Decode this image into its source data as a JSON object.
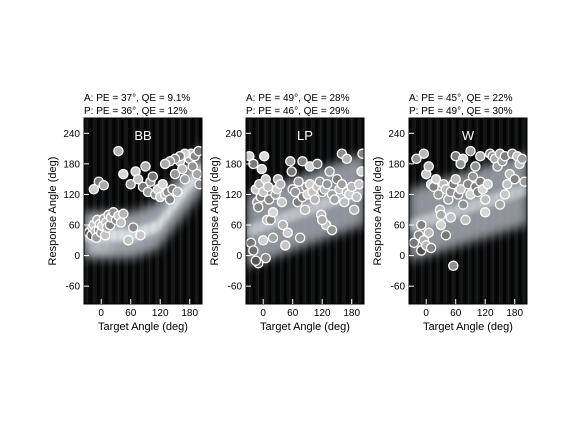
{
  "chart_data": [
    {
      "type": "scatter",
      "title": "BB",
      "stats": [
        "A: PE = 37°, QE = 9.1%",
        "P: PE = 36°, QE = 12%"
      ],
      "xlabel": "Target Angle (deg)",
      "ylabel": "Response Angle (deg)",
      "xlim": [
        -35,
        205
      ],
      "ylim": [
        -95,
        270
      ],
      "xticks": [
        0,
        60,
        120,
        180
      ],
      "yticks": [
        -60,
        0,
        60,
        120,
        180,
        240
      ],
      "xtick_labels": [
        "0",
        "60",
        "120",
        "180"
      ],
      "ytick_labels": [
        "-60",
        "0",
        "60",
        "120",
        "180",
        "240"
      ],
      "background": "density heatmap of predicted response distribution",
      "grid": false,
      "points": [
        [
          -25,
          45
        ],
        [
          -20,
          40
        ],
        [
          -18,
          55
        ],
        [
          -15,
          60
        ],
        [
          -12,
          48
        ],
        [
          -10,
          35
        ],
        [
          -8,
          70
        ],
        [
          -5,
          50
        ],
        [
          -3,
          62
        ],
        [
          0,
          45
        ],
        [
          2,
          58
        ],
        [
          5,
          72
        ],
        [
          8,
          40
        ],
        [
          10,
          65
        ],
        [
          12,
          55
        ],
        [
          15,
          80
        ],
        [
          18,
          60
        ],
        [
          20,
          75
        ],
        [
          25,
          85
        ],
        [
          30,
          70
        ],
        [
          35,
          78
        ],
        [
          40,
          65
        ],
        [
          45,
          82
        ],
        [
          -15,
          130
        ],
        [
          -5,
          145
        ],
        [
          5,
          138
        ],
        [
          35,
          205
        ],
        [
          45,
          160
        ],
        [
          55,
          30
        ],
        [
          60,
          140
        ],
        [
          65,
          55
        ],
        [
          70,
          165
        ],
        [
          75,
          150
        ],
        [
          80,
          40
        ],
        [
          85,
          135
        ],
        [
          90,
          175
        ],
        [
          95,
          125
        ],
        [
          100,
          145
        ],
        [
          105,
          155
        ],
        [
          110,
          120
        ],
        [
          115,
          130
        ],
        [
          120,
          115
        ],
        [
          125,
          140
        ],
        [
          130,
          120
        ],
        [
          135,
          125
        ],
        [
          140,
          110
        ],
        [
          145,
          130
        ],
        [
          150,
          160
        ],
        [
          155,
          125
        ],
        [
          160,
          185
        ],
        [
          165,
          170
        ],
        [
          170,
          150
        ],
        [
          175,
          195
        ],
        [
          180,
          190
        ],
        [
          183,
          200
        ],
        [
          186,
          175
        ],
        [
          190,
          195
        ],
        [
          195,
          160
        ],
        [
          200,
          140
        ],
        [
          198,
          205
        ],
        [
          170,
          200
        ],
        [
          160,
          195
        ],
        [
          150,
          190
        ],
        [
          140,
          185
        ],
        [
          130,
          180
        ]
      ]
    },
    {
      "type": "scatter",
      "title": "LP",
      "stats": [
        "A: PE = 49°, QE = 28%",
        "P: PE = 46°, QE = 29%"
      ],
      "xlabel": "Target Angle (deg)",
      "ylabel": "Response Angle (deg)",
      "xlim": [
        -35,
        205
      ],
      "ylim": [
        -95,
        270
      ],
      "xticks": [
        0,
        60,
        120,
        180
      ],
      "yticks": [
        -60,
        0,
        60,
        120,
        180,
        240
      ],
      "xtick_labels": [
        "0",
        "60",
        "120",
        "180"
      ],
      "ytick_labels": [
        "-60",
        "0",
        "60",
        "120",
        "180",
        "240"
      ],
      "background": "density heatmap of predicted response distribution",
      "grid": false,
      "points": [
        [
          -28,
          195
        ],
        [
          -20,
          180
        ],
        [
          -15,
          130
        ],
        [
          -12,
          105
        ],
        [
          -10,
          95
        ],
        [
          -8,
          140
        ],
        [
          -5,
          115
        ],
        [
          -3,
          170
        ],
        [
          0,
          125
        ],
        [
          2,
          195
        ],
        [
          5,
          150
        ],
        [
          8,
          70
        ],
        [
          10,
          135
        ],
        [
          12,
          110
        ],
        [
          -25,
          25
        ],
        [
          -20,
          10
        ],
        [
          -10,
          -15
        ],
        [
          0,
          30
        ],
        [
          5,
          -5
        ],
        [
          15,
          70
        ],
        [
          20,
          85
        ],
        [
          25,
          120
        ],
        [
          28,
          130
        ],
        [
          30,
          150
        ],
        [
          35,
          140
        ],
        [
          38,
          105
        ],
        [
          40,
          60
        ],
        [
          45,
          20
        ],
        [
          50,
          45
        ],
        [
          55,
          185
        ],
        [
          58,
          165
        ],
        [
          60,
          130
        ],
        [
          65,
          125
        ],
        [
          70,
          105
        ],
        [
          72,
          145
        ],
        [
          75,
          35
        ],
        [
          80,
          115
        ],
        [
          85,
          90
        ],
        [
          88,
          135
        ],
        [
          90,
          120
        ],
        [
          95,
          140
        ],
        [
          100,
          125
        ],
        [
          105,
          110
        ],
        [
          110,
          135
        ],
        [
          115,
          145
        ],
        [
          118,
          80
        ],
        [
          120,
          125
        ],
        [
          125,
          130
        ],
        [
          128,
          60
        ],
        [
          130,
          140
        ],
        [
          135,
          165
        ],
        [
          140,
          120
        ],
        [
          145,
          110
        ],
        [
          150,
          150
        ],
        [
          155,
          130
        ],
        [
          160,
          140
        ],
        [
          165,
          105
        ],
        [
          170,
          125
        ],
        [
          175,
          120
        ],
        [
          180,
          135
        ],
        [
          185,
          90
        ],
        [
          190,
          115
        ],
        [
          195,
          140
        ],
        [
          200,
          165
        ],
        [
          202,
          200
        ],
        [
          160,
          200
        ],
        [
          170,
          190
        ],
        [
          80,
          185
        ],
        [
          95,
          175
        ],
        [
          110,
          180
        ],
        [
          120,
          70
        ],
        [
          140,
          50
        ],
        [
          20,
          35
        ],
        [
          -15,
          -10
        ]
      ]
    },
    {
      "type": "scatter",
      "title": "W",
      "stats": [
        "A: PE = 45°, QE = 22%",
        "P: PE = 49°, QE = 30%"
      ],
      "xlabel": "Target Angle (deg)",
      "ylabel": "Response Angle (deg)",
      "xlim": [
        -35,
        205
      ],
      "ylim": [
        -95,
        270
      ],
      "xticks": [
        0,
        60,
        120,
        180
      ],
      "yticks": [
        -60,
        0,
        60,
        120,
        180,
        240
      ],
      "xtick_labels": [
        "0",
        "60",
        "120",
        "180"
      ],
      "ytick_labels": [
        "-60",
        "0",
        "60",
        "120",
        "180",
        "240"
      ],
      "background": "density heatmap of predicted response distribution",
      "grid": false,
      "points": [
        [
          -25,
          25
        ],
        [
          -15,
          40
        ],
        [
          -10,
          10
        ],
        [
          -5,
          30
        ],
        [
          0,
          20
        ],
        [
          5,
          45
        ],
        [
          10,
          15
        ],
        [
          -20,
          190
        ],
        [
          -5,
          200
        ],
        [
          0,
          160
        ],
        [
          5,
          175
        ],
        [
          10,
          140
        ],
        [
          15,
          135
        ],
        [
          20,
          150
        ],
        [
          25,
          120
        ],
        [
          28,
          90
        ],
        [
          30,
          80
        ],
        [
          35,
          140
        ],
        [
          40,
          130
        ],
        [
          45,
          110
        ],
        [
          50,
          125
        ],
        [
          55,
          140
        ],
        [
          60,
          150
        ],
        [
          65,
          120
        ],
        [
          70,
          130
        ],
        [
          75,
          100
        ],
        [
          80,
          70
        ],
        [
          85,
          140
        ],
        [
          90,
          120
        ],
        [
          95,
          155
        ],
        [
          100,
          135
        ],
        [
          105,
          125
        ],
        [
          110,
          145
        ],
        [
          115,
          130
        ],
        [
          120,
          110
        ],
        [
          125,
          140
        ],
        [
          130,
          200
        ],
        [
          135,
          195
        ],
        [
          140,
          190
        ],
        [
          145,
          175
        ],
        [
          150,
          200
        ],
        [
          155,
          185
        ],
        [
          160,
          195
        ],
        [
          165,
          140
        ],
        [
          170,
          160
        ],
        [
          175,
          200
        ],
        [
          180,
          150
        ],
        [
          185,
          195
        ],
        [
          190,
          180
        ],
        [
          195,
          190
        ],
        [
          200,
          145
        ],
        [
          60,
          195
        ],
        [
          75,
          190
        ],
        [
          90,
          205
        ],
        [
          110,
          195
        ],
        [
          120,
          85
        ],
        [
          150,
          100
        ],
        [
          160,
          120
        ],
        [
          30,
          60
        ],
        [
          40,
          40
        ],
        [
          50,
          75
        ],
        [
          55,
          -20
        ],
        [
          -10,
          60
        ],
        [
          70,
          180
        ],
        [
          100,
          175
        ]
      ]
    }
  ]
}
